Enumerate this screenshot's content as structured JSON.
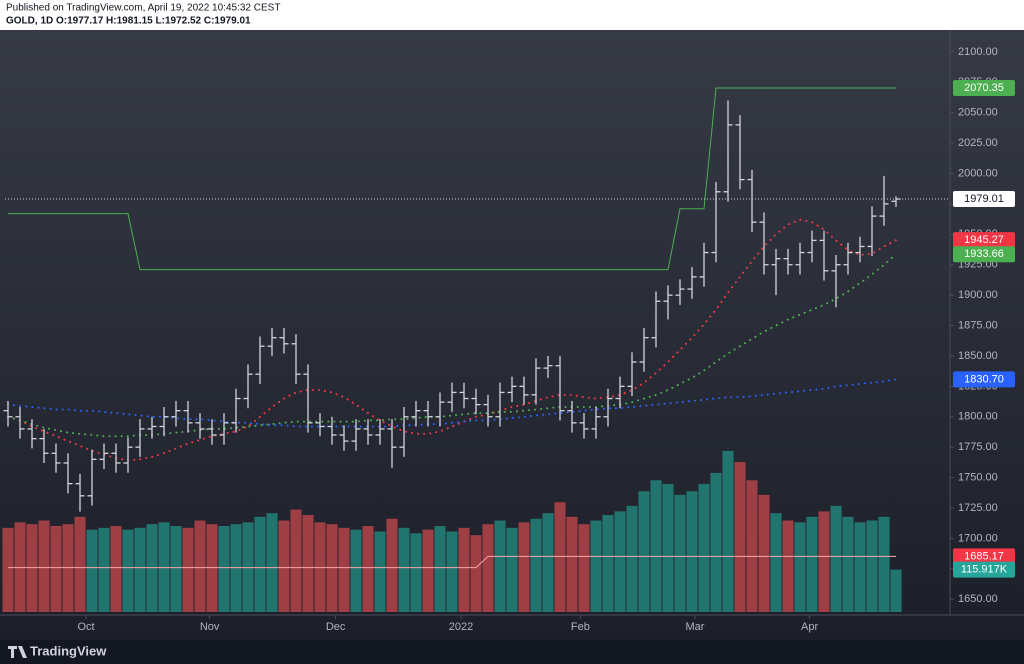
{
  "chart_data": {
    "type": "ohlc",
    "published": "Published on TradingView.com, April 19, 2022 10:45:32 CEST",
    "legend": "GOLD, 1D O:1977.17 H:1981.15 L:1972.52 C:1979.01",
    "brand": "TradingView",
    "xlim": [
      -0.25,
      78.5
    ],
    "xticks": [
      {
        "value": 6.5,
        "label": "Oct"
      },
      {
        "value": 16.8,
        "label": "Nov"
      },
      {
        "value": 27.3,
        "label": "Dec"
      },
      {
        "value": 37.75,
        "label": "2022"
      },
      {
        "value": 47.7,
        "label": "Feb"
      },
      {
        "value": 57.25,
        "label": "Mar"
      },
      {
        "value": 66.8,
        "label": "Apr"
      }
    ],
    "ylim": [
      1637,
      2118
    ],
    "yticks": [
      {
        "value": 1650,
        "label": "1650.00"
      },
      {
        "value": 1675,
        "label": "1675.00"
      },
      {
        "value": 1700,
        "label": "1700.00"
      },
      {
        "value": 1725,
        "label": "1725.00"
      },
      {
        "value": 1750,
        "label": "1750.00"
      },
      {
        "value": 1775,
        "label": "1775.00"
      },
      {
        "value": 1800,
        "label": "1800.00"
      },
      {
        "value": 1825,
        "label": "1825.00"
      },
      {
        "value": 1850,
        "label": "1850.00"
      },
      {
        "value": 1875,
        "label": "1875.00"
      },
      {
        "value": 1900,
        "label": "1900.00"
      },
      {
        "value": 1925,
        "label": "1925.00"
      },
      {
        "value": 1950,
        "label": "1950.00"
      },
      {
        "value": 1975,
        "label": "1975.00"
      },
      {
        "value": 2000,
        "label": "2000.00"
      },
      {
        "value": 2025,
        "label": "2025.00"
      },
      {
        "value": 2050,
        "label": "2050.00"
      },
      {
        "value": 2075,
        "label": "2075.00"
      },
      {
        "value": 2100,
        "label": "2100.00"
      }
    ],
    "grid": false,
    "ohlc": {
      "color": "#d1d4dc",
      "last_label": "1979.01",
      "open": [
        1805,
        1800,
        1790,
        1782,
        1770,
        1762,
        1745,
        1735,
        1765,
        1770,
        1762,
        1775,
        1790,
        1792,
        1800,
        1805,
        1795,
        1790,
        1785,
        1795,
        1815,
        1835,
        1858,
        1865,
        1860,
        1835,
        1795,
        1792,
        1785,
        1780,
        1790,
        1785,
        1790,
        1775,
        1800,
        1805,
        1800,
        1812,
        1820,
        1815,
        1810,
        1800,
        1820,
        1825,
        1818,
        1840,
        1842,
        1805,
        1795,
        1790,
        1800,
        1815,
        1825,
        1845,
        1865,
        1895,
        1900,
        1905,
        1915,
        1935,
        1985,
        2040,
        1995,
        1960,
        1925,
        1930,
        1925,
        1935,
        1945,
        1920,
        1925,
        1935,
        1940,
        1965,
        1977.17
      ],
      "high": [
        1813,
        1808,
        1798,
        1790,
        1778,
        1770,
        1753,
        1773,
        1778,
        1778,
        1783,
        1798,
        1800,
        1808,
        1813,
        1813,
        1803,
        1798,
        1803,
        1823,
        1843,
        1866,
        1873,
        1873,
        1868,
        1843,
        1803,
        1800,
        1793,
        1798,
        1798,
        1798,
        1798,
        1808,
        1813,
        1813,
        1820,
        1828,
        1828,
        1823,
        1818,
        1828,
        1833,
        1833,
        1848,
        1850,
        1850,
        1813,
        1803,
        1808,
        1823,
        1833,
        1853,
        1873,
        1903,
        1908,
        1913,
        1923,
        1943,
        1993,
        2060,
        2048,
        2003,
        1968,
        1938,
        1938,
        1943,
        1953,
        1953,
        1933,
        1943,
        1948,
        1973,
        1998,
        1981.15
      ],
      "low": [
        1792,
        1782,
        1774,
        1762,
        1754,
        1737,
        1722,
        1727,
        1757,
        1754,
        1754,
        1767,
        1782,
        1784,
        1792,
        1787,
        1782,
        1777,
        1777,
        1787,
        1807,
        1827,
        1850,
        1852,
        1827,
        1787,
        1784,
        1777,
        1772,
        1772,
        1777,
        1777,
        1758,
        1767,
        1792,
        1792,
        1792,
        1804,
        1807,
        1802,
        1792,
        1792,
        1812,
        1810,
        1810,
        1832,
        1797,
        1787,
        1782,
        1782,
        1792,
        1807,
        1817,
        1837,
        1857,
        1880,
        1892,
        1897,
        1907,
        1927,
        1977,
        1987,
        1952,
        1917,
        1900,
        1917,
        1917,
        1927,
        1912,
        1890,
        1917,
        1927,
        1932,
        1957,
        1972.52
      ],
      "close": [
        1800,
        1790,
        1782,
        1770,
        1762,
        1745,
        1735,
        1765,
        1770,
        1762,
        1775,
        1790,
        1792,
        1800,
        1805,
        1795,
        1790,
        1785,
        1795,
        1815,
        1835,
        1858,
        1865,
        1860,
        1835,
        1795,
        1792,
        1785,
        1780,
        1790,
        1785,
        1790,
        1775,
        1800,
        1805,
        1800,
        1812,
        1820,
        1815,
        1810,
        1800,
        1820,
        1825,
        1818,
        1840,
        1842,
        1805,
        1795,
        1790,
        1800,
        1815,
        1825,
        1845,
        1865,
        1895,
        1900,
        1905,
        1915,
        1935,
        1985,
        2040,
        1995,
        1960,
        1925,
        1930,
        1925,
        1935,
        1945,
        1920,
        1925,
        1935,
        1940,
        1965,
        1975,
        1979.01
      ]
    },
    "volume": {
      "ylim": [
        0,
        470
      ],
      "color_up": "#22756f",
      "color_down": "#9e3e45",
      "label_color": "#26a69a",
      "last_label": "115.917K",
      "values": [
        230,
        245,
        240,
        250,
        235,
        240,
        260,
        225,
        230,
        235,
        225,
        230,
        240,
        245,
        235,
        230,
        250,
        240,
        235,
        240,
        245,
        260,
        270,
        250,
        280,
        265,
        245,
        240,
        230,
        225,
        235,
        220,
        255,
        230,
        215,
        225,
        235,
        220,
        230,
        210,
        240,
        250,
        230,
        245,
        255,
        270,
        300,
        260,
        240,
        250,
        265,
        275,
        290,
        330,
        360,
        350,
        320,
        330,
        350,
        380,
        440,
        410,
        360,
        320,
        270,
        250,
        245,
        260,
        275,
        290,
        260,
        245,
        250,
        260,
        115.917
      ]
    },
    "series": [
      {
        "color": "#f23645",
        "style": "dotted",
        "last_label": "1945.27",
        "values": [
          1800,
          1797,
          1792,
          1788,
          1784,
          1780,
          1776,
          1772,
          1769,
          1766,
          1764,
          1765,
          1767,
          1770,
          1774,
          1778,
          1781,
          1784,
          1786,
          1788,
          1792,
          1800,
          1808,
          1815,
          1820,
          1822,
          1822,
          1820,
          1816,
          1810,
          1803,
          1797,
          1792,
          1788,
          1786,
          1786,
          1788,
          1792,
          1796,
          1800,
          1802,
          1805,
          1808,
          1810,
          1813,
          1816,
          1818,
          1818,
          1816,
          1815,
          1816,
          1818,
          1822,
          1828,
          1836,
          1845,
          1855,
          1865,
          1876,
          1888,
          1902,
          1915,
          1928,
          1940,
          1950,
          1958,
          1962,
          1960,
          1954,
          1945,
          1937,
          1933,
          1934,
          1940,
          1945.27
        ]
      },
      {
        "color": "#4caf50",
        "style": "dotted",
        "last_label": "1933.66",
        "values": [
          1800,
          1797,
          1794,
          1791,
          1789,
          1787,
          1786,
          1785,
          1784,
          1784,
          1784,
          1785,
          1785,
          1786,
          1787,
          1788,
          1789,
          1790,
          1790,
          1791,
          1792,
          1793,
          1794,
          1795,
          1796,
          1796,
          1796,
          1796,
          1796,
          1796,
          1797,
          1797,
          1798,
          1798,
          1799,
          1800,
          1800,
          1801,
          1802,
          1803,
          1803,
          1804,
          1804,
          1805,
          1806,
          1807,
          1808,
          1808,
          1808,
          1808,
          1809,
          1810,
          1812,
          1815,
          1818,
          1822,
          1827,
          1832,
          1838,
          1845,
          1852,
          1858,
          1864,
          1870,
          1875,
          1880,
          1884,
          1888,
          1892,
          1897,
          1903,
          1910,
          1917,
          1925,
          1933.66
        ]
      },
      {
        "color": "#2962ff",
        "style": "dotted",
        "last_label": "1830.70",
        "values": [
          1810,
          1809,
          1808,
          1807,
          1806,
          1806,
          1805,
          1805,
          1804,
          1803,
          1802,
          1801,
          1800,
          1800,
          1799,
          1798,
          1798,
          1797,
          1796,
          1795,
          1795,
          1794,
          1793,
          1793,
          1792,
          1792,
          1792,
          1792,
          1792,
          1792,
          1792,
          1792,
          1792,
          1793,
          1793,
          1794,
          1794,
          1795,
          1796,
          1797,
          1797,
          1798,
          1799,
          1800,
          1801,
          1802,
          1803,
          1804,
          1805,
          1806,
          1807,
          1807,
          1808,
          1809,
          1810,
          1811,
          1812,
          1813,
          1814,
          1815,
          1816,
          1816,
          1817,
          1818,
          1819,
          1820,
          1821,
          1822,
          1823,
          1825,
          1826,
          1827,
          1828,
          1829,
          1830.7
        ]
      },
      {
        "color": "#4caf50",
        "style": "solid",
        "last_label": "2070.35",
        "values": [
          1967,
          1967,
          1967,
          1967,
          1967,
          1967,
          1967,
          1967,
          1967,
          1967,
          1967,
          1921,
          1921,
          1921,
          1921,
          1921,
          1921,
          1921,
          1921,
          1921,
          1921,
          1921,
          1921,
          1921,
          1921,
          1921,
          1921,
          1921,
          1921,
          1921,
          1921,
          1921,
          1921,
          1921,
          1921,
          1921,
          1921,
          1921,
          1921,
          1921,
          1921,
          1921,
          1921,
          1921,
          1921,
          1921,
          1921,
          1921,
          1921,
          1921,
          1921,
          1921,
          1921,
          1921,
          1921,
          1921,
          1971,
          1971,
          1971,
          2070.35,
          2070.35,
          2070.35,
          2070.35,
          2070.35,
          2070.35,
          2070.35,
          2070.35,
          2070.35,
          2070.35,
          2070.35,
          2070.35,
          2070.35,
          2070.35,
          2070.35,
          2070.35
        ]
      },
      {
        "color": "#f7a8a8",
        "style": "solid",
        "last_label": "1685.17",
        "values": [
          1676,
          1676,
          1676,
          1676,
          1676,
          1676,
          1676,
          1676,
          1676,
          1676,
          1676,
          1676,
          1676,
          1676,
          1676,
          1676,
          1676,
          1676,
          1676,
          1676,
          1676,
          1676,
          1676,
          1676,
          1676,
          1676,
          1676,
          1676,
          1676,
          1676,
          1676,
          1676,
          1676,
          1676,
          1676,
          1676,
          1676,
          1676,
          1676,
          1676,
          1685.17,
          1685.17,
          1685.17,
          1685.17,
          1685.17,
          1685.17,
          1685.17,
          1685.17,
          1685.17,
          1685.17,
          1685.17,
          1685.17,
          1685.17,
          1685.17,
          1685.17,
          1685.17,
          1685.17,
          1685.17,
          1685.17,
          1685.17,
          1685.17,
          1685.17,
          1685.17,
          1685.17,
          1685.17,
          1685.17,
          1685.17,
          1685.17,
          1685.17,
          1685.17,
          1685.17,
          1685.17,
          1685.17,
          1685.17,
          1685.17
        ]
      }
    ]
  }
}
